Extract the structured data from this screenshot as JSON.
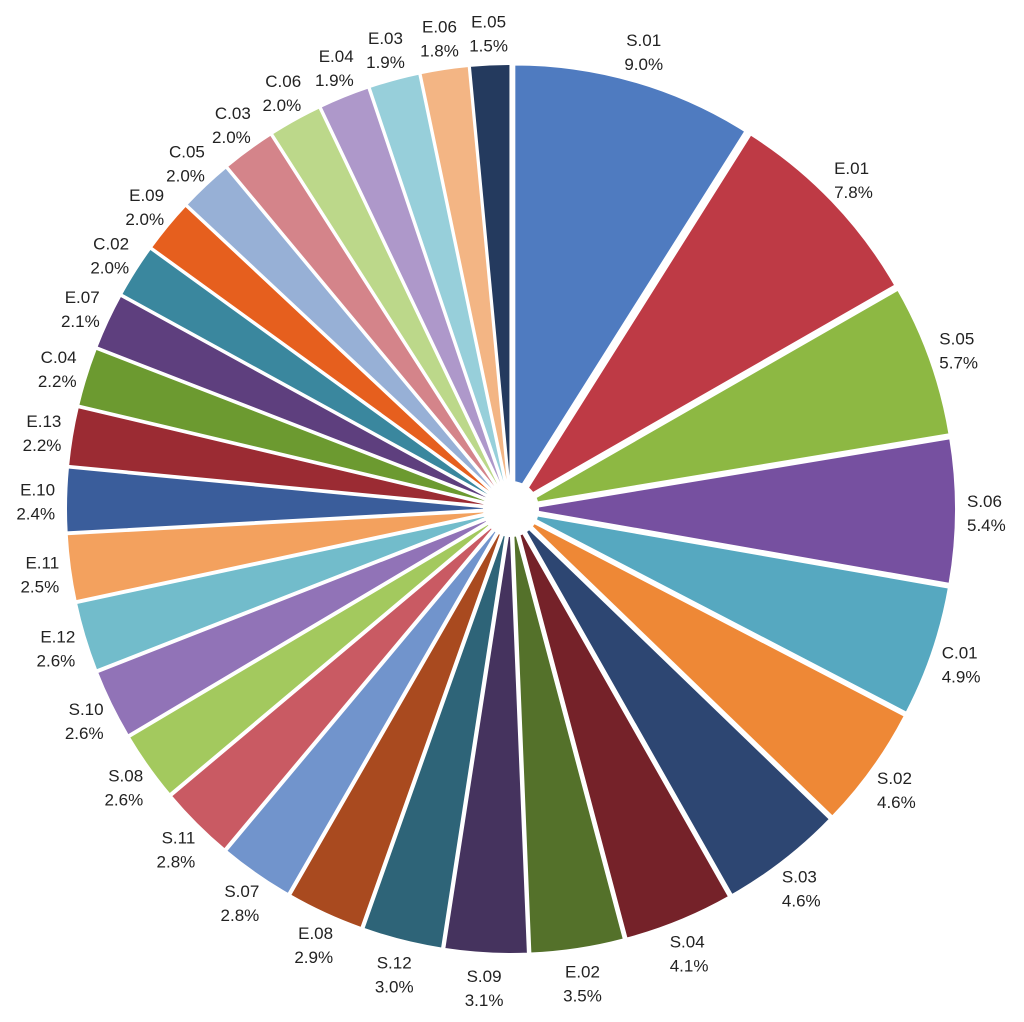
{
  "chart_data": {
    "type": "pie",
    "title": "",
    "slices": [
      {
        "label": "S.01",
        "value": 9.0,
        "text": "9.0%",
        "color": "#4F7BC0"
      },
      {
        "label": "E.01",
        "value": 7.8,
        "text": "7.8%",
        "color": "#BE3A45"
      },
      {
        "label": "S.05",
        "value": 5.7,
        "text": "5.7%",
        "color": "#8DB843"
      },
      {
        "label": "S.06",
        "value": 5.4,
        "text": "5.4%",
        "color": "#7650A0"
      },
      {
        "label": "C.01",
        "value": 4.9,
        "text": "4.9%",
        "color": "#56A8C0"
      },
      {
        "label": "S.02",
        "value": 4.6,
        "text": "4.6%",
        "color": "#EE8836"
      },
      {
        "label": "S.03",
        "value": 4.6,
        "text": "4.6%",
        "color": "#2D4672"
      },
      {
        "label": "S.04",
        "value": 4.1,
        "text": "4.1%",
        "color": "#752229"
      },
      {
        "label": "E.02",
        "value": 3.5,
        "text": "3.5%",
        "color": "#54712A"
      },
      {
        "label": "S.09",
        "value": 3.1,
        "text": "3.1%",
        "color": "#45335E"
      },
      {
        "label": "S.12",
        "value": 3.0,
        "text": "3.0%",
        "color": "#2E6478"
      },
      {
        "label": "E.08",
        "value": 2.9,
        "text": "2.9%",
        "color": "#A94A1F"
      },
      {
        "label": "S.07",
        "value": 2.8,
        "text": "2.8%",
        "color": "#7194CC"
      },
      {
        "label": "S.11",
        "value": 2.8,
        "text": "2.8%",
        "color": "#C95A63"
      },
      {
        "label": "S.08",
        "value": 2.6,
        "text": "2.6%",
        "color": "#A3C95E"
      },
      {
        "label": "S.10",
        "value": 2.6,
        "text": "2.6%",
        "color": "#9173B7"
      },
      {
        "label": "E.12",
        "value": 2.6,
        "text": "2.6%",
        "color": "#72BCCB"
      },
      {
        "label": "E.11",
        "value": 2.5,
        "text": "2.5%",
        "color": "#F3A15E"
      },
      {
        "label": "E.10",
        "value": 2.4,
        "text": "2.4%",
        "color": "#3A5D9B"
      },
      {
        "label": "E.13",
        "value": 2.2,
        "text": "2.2%",
        "color": "#9B2B33"
      },
      {
        "label": "C.04",
        "value": 2.2,
        "text": "2.2%",
        "color": "#6C9A30"
      },
      {
        "label": "E.07",
        "value": 2.1,
        "text": "2.1%",
        "color": "#5E3F7E"
      },
      {
        "label": "C.02",
        "value": 2.0,
        "text": "2.0%",
        "color": "#3A879E"
      },
      {
        "label": "E.09",
        "value": 2.0,
        "text": "2.0%",
        "color": "#E65F1E"
      },
      {
        "label": "C.05",
        "value": 2.0,
        "text": "2.0%",
        "color": "#97B0D6"
      },
      {
        "label": "C.03",
        "value": 2.0,
        "text": "2.0%",
        "color": "#D4848A"
      },
      {
        "label": "C.06",
        "value": 2.0,
        "text": "2.0%",
        "color": "#BCD88A"
      },
      {
        "label": "E.04",
        "value": 1.9,
        "text": "1.9%",
        "color": "#AE98CA"
      },
      {
        "label": "E.03",
        "value": 1.9,
        "text": "1.9%",
        "color": "#97CFDA"
      },
      {
        "label": "E.06",
        "value": 1.8,
        "text": "1.8%",
        "color": "#F3B584"
      },
      {
        "label": "E.05",
        "value": 1.5,
        "text": "1.5%",
        "color": "#243A5E"
      }
    ],
    "start_angle_deg": 0,
    "direction": "clockwise",
    "exploded": true,
    "legend": "none",
    "data_labels": "outside"
  }
}
